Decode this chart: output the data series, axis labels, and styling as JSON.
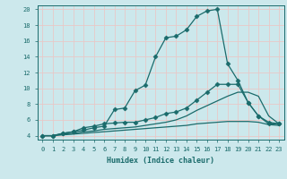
{
  "background_color": "#cce8ec",
  "grid_color": "#e8c8c8",
  "line_color": "#1a6b6b",
  "xlabel": "Humidex (Indice chaleur)",
  "xlim": [
    -0.5,
    23.5
  ],
  "ylim": [
    3.5,
    20.5
  ],
  "yticks": [
    4,
    6,
    8,
    10,
    12,
    14,
    16,
    18,
    20
  ],
  "xticks": [
    0,
    1,
    2,
    3,
    4,
    5,
    6,
    7,
    8,
    9,
    10,
    11,
    12,
    13,
    14,
    15,
    16,
    17,
    18,
    19,
    20,
    21,
    22,
    23
  ],
  "lines": [
    {
      "x": [
        0,
        1,
        2,
        3,
        4,
        5,
        6,
        7,
        8,
        9,
        10,
        11,
        12,
        13,
        14,
        15,
        16,
        17,
        18,
        19,
        20,
        21,
        22,
        23
      ],
      "y": [
        4,
        4,
        4.3,
        4.5,
        4.7,
        5.0,
        5.2,
        7.3,
        7.5,
        9.7,
        10.4,
        14.0,
        16.4,
        16.6,
        17.4,
        19.1,
        19.8,
        20.0,
        13.1,
        11.0,
        8.2,
        6.5,
        5.7,
        5.5
      ],
      "marker": "D",
      "markersize": 2.5
    },
    {
      "x": [
        0,
        1,
        2,
        3,
        4,
        5,
        6,
        7,
        8,
        9,
        10,
        11,
        12,
        13,
        14,
        15,
        16,
        17,
        18,
        19,
        20,
        21,
        22,
        23
      ],
      "y": [
        4,
        4,
        4.3,
        4.5,
        5.0,
        5.2,
        5.5,
        5.6,
        5.7,
        5.7,
        6.0,
        6.3,
        6.8,
        7.0,
        7.5,
        8.5,
        9.5,
        10.5,
        10.5,
        10.5,
        8.2,
        6.5,
        5.5,
        5.5
      ],
      "marker": "D",
      "markersize": 2.5
    },
    {
      "x": [
        0,
        1,
        2,
        3,
        4,
        5,
        6,
        7,
        8,
        9,
        10,
        11,
        12,
        13,
        14,
        15,
        16,
        17,
        18,
        19,
        20,
        21,
        22,
        23
      ],
      "y": [
        4,
        4,
        4.2,
        4.3,
        4.5,
        4.6,
        4.8,
        4.9,
        5.0,
        5.1,
        5.3,
        5.5,
        5.7,
        6.0,
        6.5,
        7.2,
        7.8,
        8.4,
        9.0,
        9.5,
        9.5,
        9.0,
        6.5,
        5.5
      ],
      "marker": null,
      "markersize": 0
    },
    {
      "x": [
        0,
        1,
        2,
        3,
        4,
        5,
        6,
        7,
        8,
        9,
        10,
        11,
        12,
        13,
        14,
        15,
        16,
        17,
        18,
        19,
        20,
        21,
        22,
        23
      ],
      "y": [
        4,
        4,
        4.1,
        4.2,
        4.3,
        4.4,
        4.5,
        4.6,
        4.7,
        4.8,
        4.9,
        5.0,
        5.1,
        5.2,
        5.3,
        5.5,
        5.6,
        5.7,
        5.8,
        5.8,
        5.8,
        5.7,
        5.4,
        5.3
      ],
      "marker": null,
      "markersize": 0
    }
  ],
  "title_fontsize": 7,
  "xlabel_fontsize": 6,
  "tick_fontsize": 5,
  "linewidth": 0.9
}
